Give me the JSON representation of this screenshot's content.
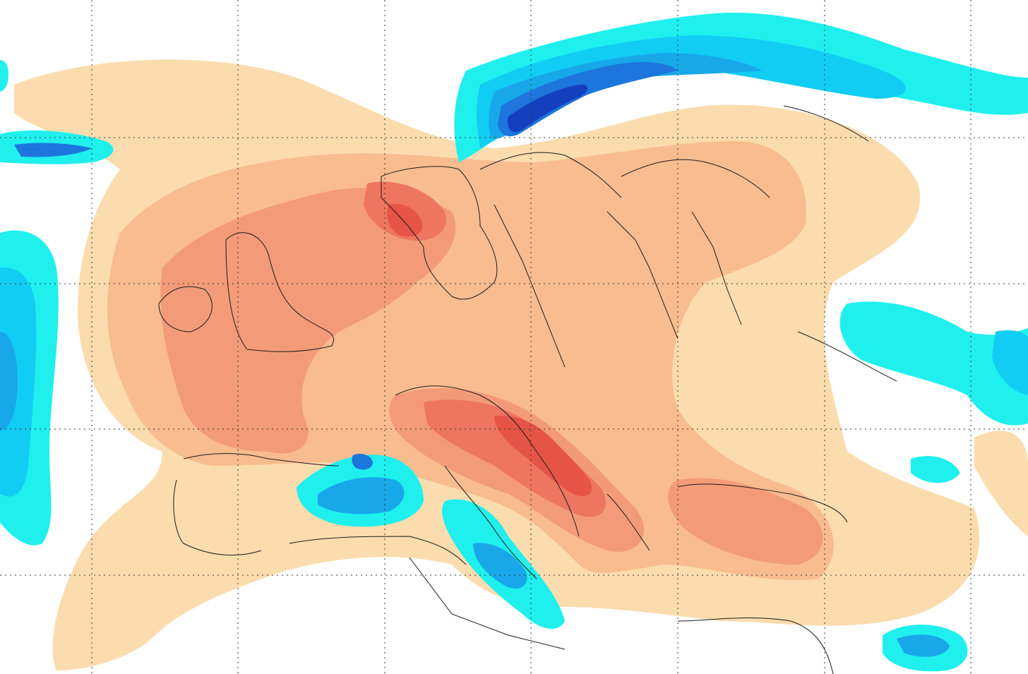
{
  "map": {
    "palette": {
      "positive": [
        "#fbdcae",
        "#f9bc8f",
        "#f39b79",
        "#ee7560",
        "#e65447"
      ],
      "negative": [
        "#1ff0ee",
        "#12cdf3",
        "#18a8ea",
        "#1d76db",
        "#1440c0"
      ],
      "borders": "#1a1a1a",
      "gridlines": "#333333",
      "background": "#ffffff"
    }
  }
}
